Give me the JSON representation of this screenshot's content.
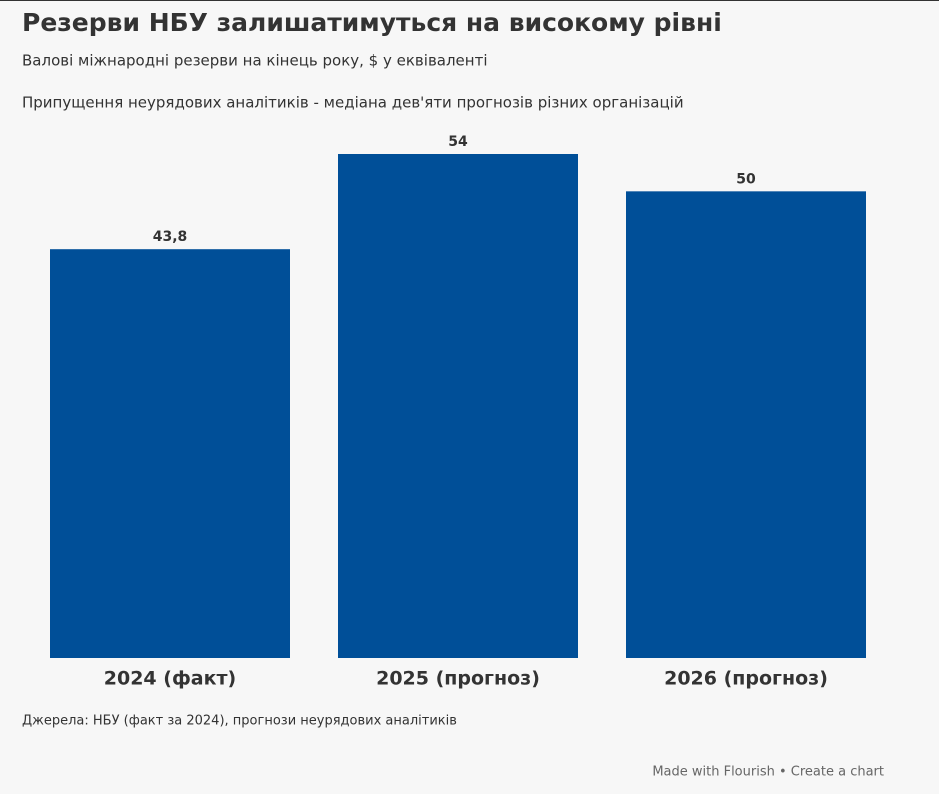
{
  "chart_data": {
    "type": "bar",
    "title": "Резерви НБУ залишатимуться на високому рівні",
    "subtitle": "Валові міжнародні резерви на кінець року, $ у еквіваленті",
    "note": "Припущення неурядових аналітиків - медіана дев'яти прогнозів різних організацій",
    "categories": [
      "2024 (факт)",
      "2025 (прогноз)",
      "2026 (прогноз)"
    ],
    "values": [
      43.8,
      54,
      50
    ],
    "value_labels": [
      "43,8",
      "54",
      "50"
    ],
    "color": "#004f98",
    "source": "Джерела: НБУ (факт за 2024), прогнози неурядових аналітиків",
    "footer": "Made with Flourish • Create a chart"
  }
}
